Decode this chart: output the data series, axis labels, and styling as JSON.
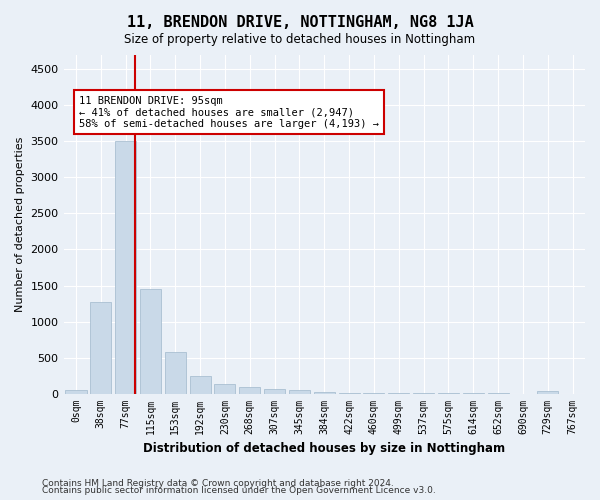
{
  "title": "11, BRENDON DRIVE, NOTTINGHAM, NG8 1JA",
  "subtitle": "Size of property relative to detached houses in Nottingham",
  "xlabel": "Distribution of detached houses by size in Nottingham",
  "ylabel": "Number of detached properties",
  "bin_labels": [
    "0sqm",
    "38sqm",
    "77sqm",
    "115sqm",
    "153sqm",
    "192sqm",
    "230sqm",
    "268sqm",
    "307sqm",
    "345sqm",
    "384sqm",
    "422sqm",
    "460sqm",
    "499sqm",
    "537sqm",
    "575sqm",
    "614sqm",
    "652sqm",
    "690sqm",
    "729sqm",
    "767sqm"
  ],
  "bar_values": [
    50,
    1270,
    3500,
    1450,
    580,
    240,
    135,
    95,
    70,
    45,
    20,
    8,
    3,
    2,
    2,
    1,
    1,
    1,
    0,
    30,
    0
  ],
  "bar_color": "#c9d9e8",
  "bar_edgecolor": "#a0b8cc",
  "property_line_x": 2.37,
  "annotation_text": "11 BRENDON DRIVE: 95sqm\n← 41% of detached houses are smaller (2,947)\n58% of semi-detached houses are larger (4,193) →",
  "annotation_box_color": "#ffffff",
  "annotation_box_edgecolor": "#cc0000",
  "red_line_color": "#cc0000",
  "ylim": [
    0,
    4700
  ],
  "yticks": [
    0,
    500,
    1000,
    1500,
    2000,
    2500,
    3000,
    3500,
    4000,
    4500
  ],
  "footer_line1": "Contains HM Land Registry data © Crown copyright and database right 2024.",
  "footer_line2": "Contains public sector information licensed under the Open Government Licence v3.0.",
  "background_color": "#eaf0f7",
  "plot_background_color": "#eaf0f7"
}
